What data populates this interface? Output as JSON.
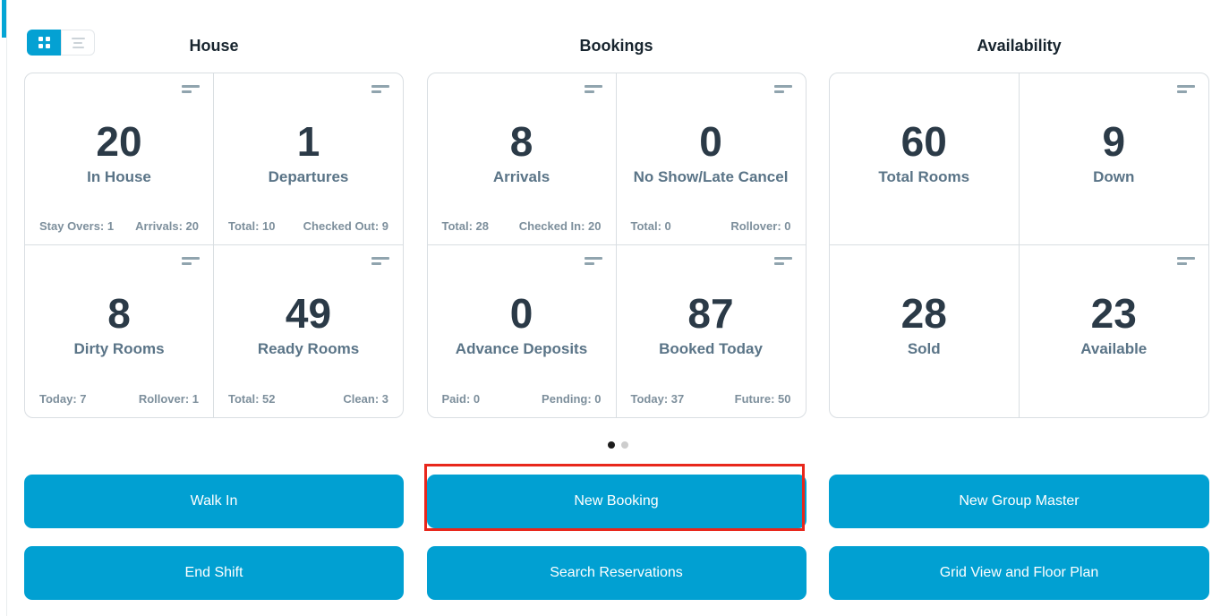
{
  "view_toggle": {
    "active": "grid",
    "grid_icon": "grid-view-icon",
    "list_icon": "list-view-icon"
  },
  "sections": [
    {
      "title": "House",
      "cards": [
        {
          "value": "20",
          "label": "In House",
          "footer_left": "Stay Overs: 1",
          "footer_right": "Arrivals: 20",
          "menu_icon": true
        },
        {
          "value": "1",
          "label": "Departures",
          "footer_left": "Total: 10",
          "footer_right": "Checked Out: 9",
          "menu_icon": true
        },
        {
          "value": "8",
          "label": "Dirty Rooms",
          "footer_left": "Today: 7",
          "footer_right": "Rollover: 1",
          "menu_icon": true
        },
        {
          "value": "49",
          "label": "Ready Rooms",
          "footer_left": "Total: 52",
          "footer_right": "Clean: 3",
          "menu_icon": true
        }
      ]
    },
    {
      "title": "Bookings",
      "cards": [
        {
          "value": "8",
          "label": "Arrivals",
          "footer_left": "Total: 28",
          "footer_right": "Checked In: 20",
          "menu_icon": true
        },
        {
          "value": "0",
          "label": "No Show/Late Cancel",
          "footer_left": "Total: 0",
          "footer_right": "Rollover: 0",
          "menu_icon": true
        },
        {
          "value": "0",
          "label": "Advance Deposits",
          "footer_left": "Paid: 0",
          "footer_right": "Pending: 0",
          "menu_icon": true
        },
        {
          "value": "87",
          "label": "Booked Today",
          "footer_left": "Today: 37",
          "footer_right": "Future: 50",
          "menu_icon": true
        }
      ]
    },
    {
      "title": "Availability",
      "cards": [
        {
          "value": "60",
          "label": "Total Rooms",
          "menu_icon": false
        },
        {
          "value": "9",
          "label": "Down",
          "menu_icon": true
        },
        {
          "value": "28",
          "label": "Sold",
          "menu_icon": false
        },
        {
          "value": "23",
          "label": "Available",
          "menu_icon": true
        }
      ]
    }
  ],
  "carousel": {
    "dot_count": 2,
    "active_index": 0
  },
  "action_buttons": [
    {
      "label": "Walk In",
      "highlighted": false
    },
    {
      "label": "New Booking",
      "highlighted": true
    },
    {
      "label": "New Group Master",
      "highlighted": false
    },
    {
      "label": "End Shift",
      "highlighted": false
    },
    {
      "label": "Search Reservations",
      "highlighted": false
    },
    {
      "label": "Grid View and Floor Plan",
      "highlighted": false
    }
  ],
  "colors": {
    "accent": "#04a5d5",
    "button": "#01a0d2",
    "annotation": "#e8271c",
    "stat_value": "#2b3a47",
    "stat_label": "#5a7487",
    "footer_text": "#7d8f9c",
    "card_border": "#d9dee2",
    "dot_active": "#1c1c1c",
    "dot_inactive": "#cdcdcd"
  }
}
